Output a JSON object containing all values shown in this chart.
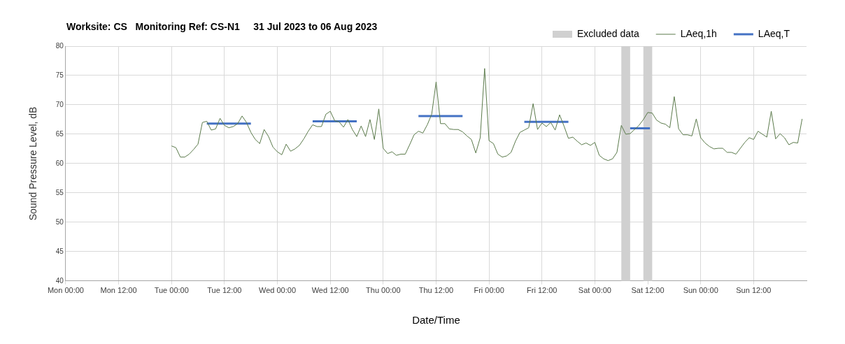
{
  "chart_data": {
    "type": "line",
    "title": "Worksite: CS   Monitoring Ref: CS-N1     31 Jul 2023 to 06 Aug 2023",
    "xlabel": "Date/Time",
    "ylabel": "Sound Pressure Level, dB",
    "xlim": [
      "2023-07-31T00:00",
      "2023-08-07T00:00"
    ],
    "xticks": [
      {
        "value": "2023-07-31T00:00",
        "label": "Mon 00:00"
      },
      {
        "value": "2023-07-31T12:00",
        "label": "Mon 12:00"
      },
      {
        "value": "2023-08-01T00:00",
        "label": "Tue 00:00"
      },
      {
        "value": "2023-08-01T12:00",
        "label": "Tue 12:00"
      },
      {
        "value": "2023-08-02T00:00",
        "label": "Wed 00:00"
      },
      {
        "value": "2023-08-02T12:00",
        "label": "Wed 12:00"
      },
      {
        "value": "2023-08-03T00:00",
        "label": "Thu 00:00"
      },
      {
        "value": "2023-08-03T12:00",
        "label": "Thu 12:00"
      },
      {
        "value": "2023-08-04T00:00",
        "label": "Fri 00:00"
      },
      {
        "value": "2023-08-04T12:00",
        "label": "Fri 12:00"
      },
      {
        "value": "2023-08-05T00:00",
        "label": "Sat 00:00"
      },
      {
        "value": "2023-08-05T12:00",
        "label": "Sat 12:00"
      },
      {
        "value": "2023-08-06T00:00",
        "label": "Sun 00:00"
      },
      {
        "value": "2023-08-06T12:00",
        "label": "Sun 12:00"
      }
    ],
    "ylim": [
      40,
      80
    ],
    "yticks": [
      40,
      45,
      50,
      55,
      60,
      65,
      70,
      75,
      80
    ],
    "grid": true,
    "legend": "top right",
    "bands": [
      {
        "axis": "x",
        "from": "2023-08-05T06:00",
        "to": "2023-08-05T08:00",
        "label": "Excluded data",
        "color": "#d0d0d0"
      },
      {
        "axis": "x",
        "from": "2023-08-05T11:00",
        "to": "2023-08-05T13:00",
        "color": "#d0d0d0"
      }
    ],
    "series": [
      {
        "name": "LAeq,1h",
        "color": "#5b7a4b",
        "line_style": "solid",
        "x": [
          "2023-08-01T00:00",
          "2023-08-01T01:00",
          "2023-08-01T02:00",
          "2023-08-01T03:00",
          "2023-08-01T04:00",
          "2023-08-01T05:00",
          "2023-08-01T06:00",
          "2023-08-01T07:00",
          "2023-08-01T08:00",
          "2023-08-01T09:00",
          "2023-08-01T10:00",
          "2023-08-01T11:00",
          "2023-08-01T12:00",
          "2023-08-01T13:00",
          "2023-08-01T14:00",
          "2023-08-01T15:00",
          "2023-08-01T16:00",
          "2023-08-01T17:00",
          "2023-08-01T18:00",
          "2023-08-01T19:00",
          "2023-08-01T20:00",
          "2023-08-01T21:00",
          "2023-08-01T22:00",
          "2023-08-01T23:00",
          "2023-08-02T00:00",
          "2023-08-02T01:00",
          "2023-08-02T02:00",
          "2023-08-02T03:00",
          "2023-08-02T04:00",
          "2023-08-02T05:00",
          "2023-08-02T06:00",
          "2023-08-02T07:00",
          "2023-08-02T08:00",
          "2023-08-02T09:00",
          "2023-08-02T10:00",
          "2023-08-02T11:00",
          "2023-08-02T12:00",
          "2023-08-02T13:00",
          "2023-08-02T14:00",
          "2023-08-02T15:00",
          "2023-08-02T16:00",
          "2023-08-02T17:00",
          "2023-08-02T18:00",
          "2023-08-02T19:00",
          "2023-08-02T20:00",
          "2023-08-02T21:00",
          "2023-08-02T22:00",
          "2023-08-02T23:00",
          "2023-08-03T00:00",
          "2023-08-03T01:00",
          "2023-08-03T02:00",
          "2023-08-03T03:00",
          "2023-08-03T04:00",
          "2023-08-03T05:00",
          "2023-08-03T06:00",
          "2023-08-03T07:00",
          "2023-08-03T08:00",
          "2023-08-03T09:00",
          "2023-08-03T10:00",
          "2023-08-03T11:00",
          "2023-08-03T12:00",
          "2023-08-03T13:00",
          "2023-08-03T14:00",
          "2023-08-03T15:00",
          "2023-08-03T16:00",
          "2023-08-03T17:00",
          "2023-08-03T18:00",
          "2023-08-03T19:00",
          "2023-08-03T20:00",
          "2023-08-03T21:00",
          "2023-08-03T22:00",
          "2023-08-03T23:00",
          "2023-08-04T00:00",
          "2023-08-04T01:00",
          "2023-08-04T02:00",
          "2023-08-04T03:00",
          "2023-08-04T04:00",
          "2023-08-04T05:00",
          "2023-08-04T06:00",
          "2023-08-04T07:00",
          "2023-08-04T08:00",
          "2023-08-04T09:00",
          "2023-08-04T10:00",
          "2023-08-04T11:00",
          "2023-08-04T12:00",
          "2023-08-04T13:00",
          "2023-08-04T14:00",
          "2023-08-04T15:00",
          "2023-08-04T16:00",
          "2023-08-04T17:00",
          "2023-08-04T18:00",
          "2023-08-04T19:00",
          "2023-08-04T20:00",
          "2023-08-04T21:00",
          "2023-08-04T22:00",
          "2023-08-04T23:00",
          "2023-08-05T00:00",
          "2023-08-05T01:00",
          "2023-08-05T02:00",
          "2023-08-05T03:00",
          "2023-08-05T04:00",
          "2023-08-05T05:00",
          "2023-08-05T06:00",
          "2023-08-05T07:00",
          "2023-08-05T08:00",
          "2023-08-05T09:00",
          "2023-08-05T10:00",
          "2023-08-05T11:00",
          "2023-08-05T12:00",
          "2023-08-05T13:00",
          "2023-08-05T14:00",
          "2023-08-05T15:00",
          "2023-08-05T16:00",
          "2023-08-05T17:00",
          "2023-08-05T18:00",
          "2023-08-05T19:00",
          "2023-08-05T20:00",
          "2023-08-05T21:00",
          "2023-08-05T22:00",
          "2023-08-05T23:00",
          "2023-08-06T00:00",
          "2023-08-06T01:00",
          "2023-08-06T02:00",
          "2023-08-06T03:00",
          "2023-08-06T04:00",
          "2023-08-06T05:00",
          "2023-08-06T06:00",
          "2023-08-06T07:00",
          "2023-08-06T08:00",
          "2023-08-06T09:00",
          "2023-08-06T10:00",
          "2023-08-06T11:00",
          "2023-08-06T12:00",
          "2023-08-06T13:00",
          "2023-08-06T14:00",
          "2023-08-06T15:00",
          "2023-08-06T16:00",
          "2023-08-06T17:00",
          "2023-08-06T18:00",
          "2023-08-06T19:00",
          "2023-08-06T20:00",
          "2023-08-06T21:00",
          "2023-08-06T22:00",
          "2023-08-06T23:00"
        ],
        "values": [
          63.0,
          62.7,
          61.1,
          61.1,
          61.6,
          62.4,
          63.3,
          67.0,
          67.2,
          65.7,
          65.9,
          67.7,
          66.5,
          66.1,
          66.3,
          66.8,
          68.1,
          67.0,
          65.3,
          64.1,
          63.4,
          65.8,
          64.6,
          62.8,
          62.0,
          61.5,
          63.3,
          62.1,
          62.5,
          63.1,
          64.2,
          65.5,
          66.6,
          66.3,
          66.3,
          68.4,
          68.9,
          67.3,
          67.1,
          66.2,
          67.5,
          65.8,
          64.6,
          66.4,
          64.6,
          67.5,
          64.1,
          69.3,
          62.6,
          61.7,
          62.0,
          61.4,
          61.6,
          61.6,
          63.2,
          64.9,
          65.5,
          65.2,
          66.6,
          68.4,
          73.9,
          66.8,
          66.8,
          65.9,
          65.8,
          65.8,
          65.4,
          64.7,
          64.1,
          61.8,
          64.4,
          76.2,
          63.9,
          63.4,
          61.6,
          61.1,
          61.3,
          61.9,
          63.8,
          65.3,
          65.7,
          66.1,
          70.2,
          65.8,
          66.9,
          66.3,
          67.0,
          65.7,
          68.3,
          66.4,
          64.3,
          64.5,
          63.8,
          63.2,
          63.5,
          63.1,
          63.6,
          61.4,
          60.8,
          60.5,
          60.8,
          61.9,
          66.5,
          65.0,
          65.1,
          65.8,
          66.5,
          67.5,
          68.7,
          68.6,
          67.4,
          66.9,
          66.7,
          66.1,
          71.4,
          65.9,
          64.9,
          64.9,
          64.7,
          67.6,
          64.4,
          63.5,
          62.9,
          62.5,
          62.6,
          62.6,
          61.9,
          61.9,
          61.6,
          62.6,
          63.6,
          64.4,
          64.1,
          65.5,
          65.0,
          64.5,
          68.9,
          64.2,
          65.1,
          64.4,
          63.2,
          63.6,
          63.5,
          67.6
        ]
      },
      {
        "name": "LAeq,T",
        "color": "#4472c4",
        "line_style": "solid",
        "x": [
          "2023-08-01T08:00",
          "2023-08-01T18:00"
        ],
        "values": [
          66.8,
          66.8
        ]
      },
      {
        "color": "#4472c4",
        "line_style": "solid",
        "x": [
          "2023-08-02T08:00",
          "2023-08-02T18:00"
        ],
        "values": [
          67.2,
          67.2
        ]
      },
      {
        "color": "#4472c4",
        "line_style": "solid",
        "x": [
          "2023-08-03T08:00",
          "2023-08-03T18:00"
        ],
        "values": [
          68.1,
          68.1
        ]
      },
      {
        "color": "#4472c4",
        "line_style": "solid",
        "x": [
          "2023-08-04T08:00",
          "2023-08-04T18:00"
        ],
        "values": [
          67.1,
          67.1
        ]
      },
      {
        "color": "#4472c4",
        "line_style": "solid",
        "x": [
          "2023-08-05T08:00",
          "2023-08-05T12:30"
        ],
        "values": [
          66.0,
          66.0
        ]
      }
    ]
  }
}
